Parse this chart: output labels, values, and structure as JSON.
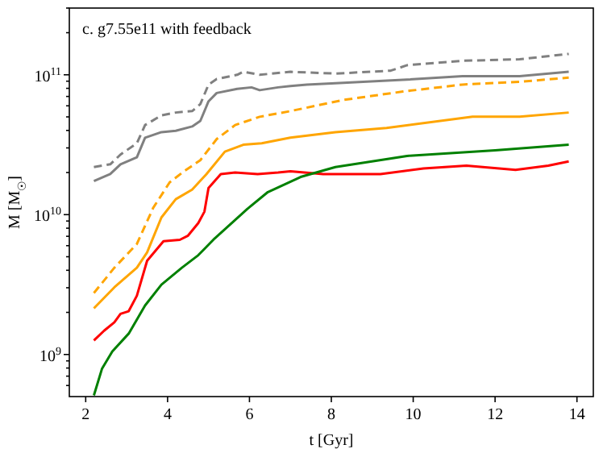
{
  "chart_data": {
    "type": "line",
    "title": "c. g7.55e11 with feedback",
    "xlabel": "t [Gyr]",
    "ylabel": "M [M$_{☉}$]",
    "log": "y",
    "grid": false,
    "xlim": [
      1.6,
      14.4
    ],
    "xticks": [
      2,
      4,
      6,
      8,
      10,
      12,
      14
    ],
    "ylim": [
      500000000.0,
      300000000000.0
    ],
    "yticks": [
      {
        "value": 600000000.0,
        "label": null
      },
      {
        "value": 700000000.0,
        "label": null
      },
      {
        "value": 800000000.0,
        "label": null
      },
      {
        "value": 900000000.0,
        "label": null
      },
      {
        "value": 1000000000.0,
        "label": "10$^{9}$"
      },
      {
        "value": 2000000000.0,
        "label": null
      },
      {
        "value": 3000000000.0,
        "label": null
      },
      {
        "value": 4000000000.0,
        "label": null
      },
      {
        "value": 5000000000.0,
        "label": null
      },
      {
        "value": 6000000000.0,
        "label": null
      },
      {
        "value": 7000000000.0,
        "label": null
      },
      {
        "value": 8000000000.0,
        "label": null
      },
      {
        "value": 9000000000.0,
        "label": null
      },
      {
        "value": 10000000000.0,
        "label": "10$^{10}$"
      },
      {
        "value": 20000000000.0,
        "label": null
      },
      {
        "value": 30000000000.0,
        "label": null
      },
      {
        "value": 40000000000.0,
        "label": null
      },
      {
        "value": 50000000000.0,
        "label": null
      },
      {
        "value": 60000000000.0,
        "label": null
      },
      {
        "value": 70000000000.0,
        "label": null
      },
      {
        "value": 80000000000.0,
        "label": null
      },
      {
        "value": 90000000000.0,
        "label": null
      },
      {
        "value": 100000000000.0,
        "label": "10$^{11}$"
      },
      {
        "value": 200000000000.0,
        "label": null
      },
      {
        "value": 300000000000.0,
        "label": null
      }
    ],
    "series": [
      {
        "color": "#808080",
        "line_style": "dashed",
        "x": [
          2.2,
          2.6,
          2.85,
          3.25,
          3.45,
          3.85,
          4.2,
          4.6,
          4.8,
          5.0,
          5.2,
          5.7,
          5.85,
          6.25,
          7.0,
          8.1,
          9.45,
          9.85,
          11.2,
          12.6,
          13.8
        ],
        "values": [
          21900000000.0,
          22900000000.0,
          26900000000.0,
          32400000000.0,
          43700000000.0,
          51300000000.0,
          53700000000.0,
          55000000000.0,
          61700000000.0,
          85100000000.0,
          93300000000.0,
          100000000000.0,
          105000000000.0,
          100000000000.0,
          105000000000.0,
          102000000000.0,
          107000000000.0,
          117000000000.0,
          126000000000.0,
          129000000000.0,
          141000000000.0
        ]
      },
      {
        "color": "#808080",
        "line_style": "solid",
        "x": [
          2.2,
          2.6,
          2.85,
          3.25,
          3.45,
          3.85,
          4.2,
          4.6,
          4.8,
          5.0,
          5.2,
          5.7,
          6.05,
          6.25,
          6.7,
          7.0,
          7.4,
          8.1,
          9.75,
          11.2,
          12.6,
          13.8
        ],
        "values": [
          17400000000.0,
          19500000000.0,
          22900000000.0,
          25700000000.0,
          35500000000.0,
          38900000000.0,
          39800000000.0,
          42700000000.0,
          46800000000.0,
          64600000000.0,
          74100000000.0,
          79400000000.0,
          81300000000.0,
          77600000000.0,
          81300000000.0,
          83200000000.0,
          85100000000.0,
          87100000000.0,
          92000000000.0,
          97700000000.0,
          97700000000.0,
          105000000000.0
        ]
      },
      {
        "color": "#ffa500",
        "line_style": "dashed",
        "x": [
          2.2,
          2.7,
          3.25,
          3.65,
          4.05,
          4.4,
          4.8,
          5.2,
          5.65,
          6.25,
          7.0,
          8.3,
          9.75,
          11.2,
          12.6,
          13.8
        ],
        "values": [
          2750000000.0,
          4170000000.0,
          6170000000.0,
          11200000000.0,
          17000000000.0,
          20400000000.0,
          24500000000.0,
          34700000000.0,
          43700000000.0,
          50100000000.0,
          55000000000.0,
          66100000000.0,
          75900000000.0,
          85100000000.0,
          89100000000.0,
          95500000000.0
        ]
      },
      {
        "color": "#ffa500",
        "line_style": "solid",
        "x": [
          2.2,
          2.7,
          3.25,
          3.5,
          3.85,
          4.2,
          4.6,
          4.95,
          5.4,
          5.85,
          6.3,
          7.0,
          8.1,
          9.35,
          11.45,
          12.6,
          13.8
        ],
        "values": [
          2140000000.0,
          3020000000.0,
          4170000000.0,
          5370000000.0,
          9550000000.0,
          12900000000.0,
          15100000000.0,
          19500000000.0,
          28200000000.0,
          31600000000.0,
          32400000000.0,
          35500000000.0,
          38900000000.0,
          41700000000.0,
          50100000000.0,
          50100000000.0,
          53700000000.0
        ]
      },
      {
        "color": "#ff0000",
        "line_style": "solid",
        "x": [
          2.2,
          2.45,
          2.7,
          2.85,
          3.05,
          3.25,
          3.5,
          3.9,
          4.3,
          4.5,
          4.75,
          4.9,
          5.0,
          5.3,
          5.65,
          6.2,
          6.7,
          7.0,
          7.8,
          9.2,
          10.25,
          11.3,
          12.5,
          13.3,
          13.8
        ],
        "values": [
          1260000000.0,
          1480000000.0,
          1700000000.0,
          1950000000.0,
          2040000000.0,
          2630000000.0,
          4680000000.0,
          6460000000.0,
          6610000000.0,
          7080000000.0,
          8710000000.0,
          10500000000.0,
          15500000000.0,
          19500000000.0,
          20000000000.0,
          19500000000.0,
          20000000000.0,
          20400000000.0,
          19500000000.0,
          19500000000.0,
          21400000000.0,
          22400000000.0,
          20900000000.0,
          22400000000.0,
          24000000000.0
        ]
      },
      {
        "color": "#008000",
        "line_style": "solid",
        "x": [
          2.2,
          2.4,
          2.65,
          3.05,
          3.45,
          3.85,
          4.35,
          4.75,
          5.15,
          5.95,
          6.45,
          7.25,
          8.1,
          9.85,
          12.0,
          13.8
        ],
        "values": [
          510000000.0,
          794000000.0,
          1050000000.0,
          1410000000.0,
          2240000000.0,
          3160000000.0,
          4170000000.0,
          5130000000.0,
          6760000000.0,
          11000000000.0,
          14500000000.0,
          18600000000.0,
          21900000000.0,
          26300000000.0,
          28800000000.0,
          31600000000.0
        ]
      }
    ]
  }
}
